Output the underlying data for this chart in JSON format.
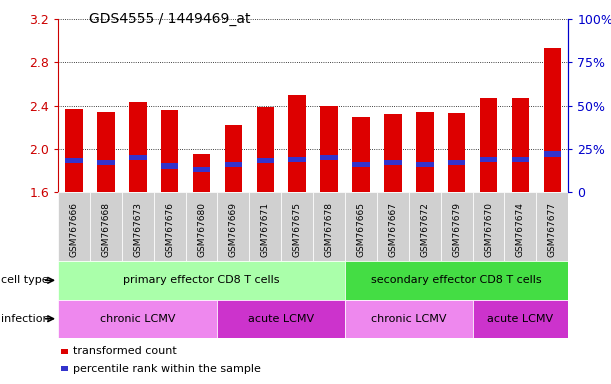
{
  "title": "GDS4555 / 1449469_at",
  "samples": [
    "GSM767666",
    "GSM767668",
    "GSM767673",
    "GSM767676",
    "GSM767680",
    "GSM767669",
    "GSM767671",
    "GSM767675",
    "GSM767678",
    "GSM767665",
    "GSM767667",
    "GSM767672",
    "GSM767679",
    "GSM767670",
    "GSM767674",
    "GSM767677"
  ],
  "transformed_count": [
    2.37,
    2.34,
    2.43,
    2.36,
    1.95,
    2.22,
    2.39,
    2.5,
    2.4,
    2.29,
    2.32,
    2.34,
    2.33,
    2.47,
    2.47,
    2.93
  ],
  "percentile_rank": [
    18,
    17,
    20,
    15,
    13,
    16,
    18,
    19,
    20,
    16,
    17,
    16,
    17,
    19,
    19,
    22
  ],
  "ylim_left": [
    1.6,
    3.2
  ],
  "ylim_right": [
    0,
    100
  ],
  "yticks_left": [
    1.6,
    2.0,
    2.4,
    2.8,
    3.2
  ],
  "yticks_right": [
    0,
    25,
    50,
    75,
    100
  ],
  "bar_color_red": "#dd0000",
  "bar_color_blue": "#3333cc",
  "bar_width": 0.55,
  "cell_type_groups": [
    {
      "label": "primary effector CD8 T cells",
      "start": 0,
      "end": 8,
      "color": "#aaffaa"
    },
    {
      "label": "secondary effector CD8 T cells",
      "start": 9,
      "end": 15,
      "color": "#44dd44"
    }
  ],
  "infection_groups": [
    {
      "label": "chronic LCMV",
      "start": 0,
      "end": 4,
      "color": "#ee88ee"
    },
    {
      "label": "acute LCMV",
      "start": 5,
      "end": 8,
      "color": "#cc33cc"
    },
    {
      "label": "chronic LCMV",
      "start": 9,
      "end": 12,
      "color": "#ee88ee"
    },
    {
      "label": "acute LCMV",
      "start": 13,
      "end": 15,
      "color": "#cc33cc"
    }
  ],
  "legend_items": [
    {
      "label": "transformed count",
      "color": "#dd0000"
    },
    {
      "label": "percentile rank within the sample",
      "color": "#3333cc"
    }
  ],
  "left_axis_color": "#cc0000",
  "right_axis_color": "#0000cc",
  "grid_color": "#000000",
  "cell_type_label": "cell type",
  "infection_label": "infection"
}
